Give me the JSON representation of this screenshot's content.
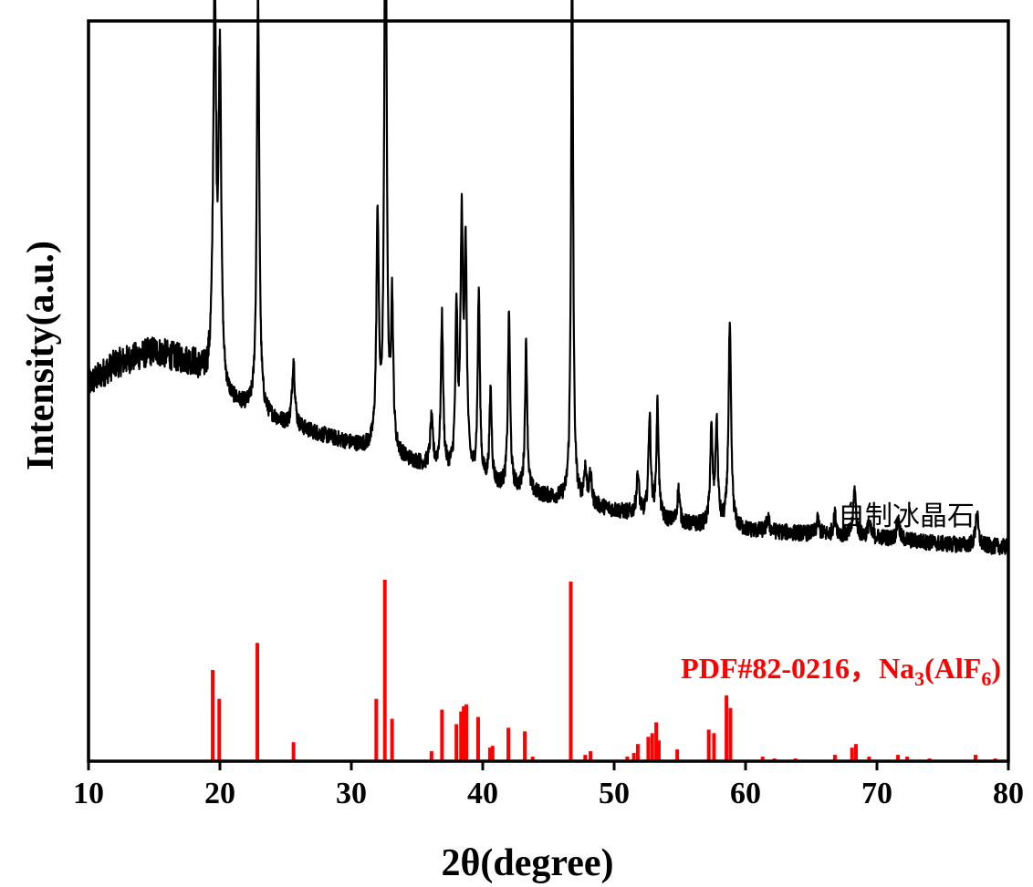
{
  "chart_data": {
    "type": "line",
    "title": "",
    "xlabel": "2θ(degree)",
    "ylabel": "Intensity(a.u.)",
    "xlim": [
      10,
      80
    ],
    "x_ticks": [
      "10",
      "20",
      "30",
      "40",
      "50",
      "60",
      "70",
      "80"
    ],
    "y_ticks": false,
    "grid": false,
    "legend_placement": "right",
    "colors": {
      "sample": "#000000",
      "reference": "#ff0000"
    },
    "series": [
      {
        "name": "自制冰晶石",
        "kind": "xrd-pattern",
        "baseline": [
          [
            10,
            0.42
          ],
          [
            12,
            0.45
          ],
          [
            15,
            0.47
          ],
          [
            18,
            0.45
          ],
          [
            20,
            0.4
          ],
          [
            25,
            0.36
          ],
          [
            30,
            0.33
          ],
          [
            35,
            0.3
          ],
          [
            40,
            0.27
          ],
          [
            45,
            0.25
          ],
          [
            50,
            0.23
          ],
          [
            55,
            0.21
          ],
          [
            60,
            0.2
          ],
          [
            65,
            0.195
          ],
          [
            70,
            0.19
          ],
          [
            75,
            0.18
          ],
          [
            80,
            0.175
          ]
        ],
        "peaks": [
          [
            19.6,
            0.6,
            0.13
          ],
          [
            20.0,
            0.49,
            0.12
          ],
          [
            22.9,
            0.64,
            0.11
          ],
          [
            25.6,
            0.1,
            0.12
          ],
          [
            32.0,
            0.34,
            0.11
          ],
          [
            32.6,
            0.98,
            0.1
          ],
          [
            33.1,
            0.22,
            0.1
          ],
          [
            36.1,
            0.07,
            0.12
          ],
          [
            36.9,
            0.23,
            0.1
          ],
          [
            38.0,
            0.23,
            0.1
          ],
          [
            38.4,
            0.36,
            0.11
          ],
          [
            38.7,
            0.32,
            0.11
          ],
          [
            39.7,
            0.28,
            0.1
          ],
          [
            40.6,
            0.14,
            0.1
          ],
          [
            42.0,
            0.26,
            0.1
          ],
          [
            43.3,
            0.22,
            0.1
          ],
          [
            46.8,
            0.85,
            0.09
          ],
          [
            47.8,
            0.05,
            0.12
          ],
          [
            48.2,
            0.04,
            0.12
          ],
          [
            51.8,
            0.06,
            0.12
          ],
          [
            52.7,
            0.15,
            0.11
          ],
          [
            53.3,
            0.17,
            0.1
          ],
          [
            54.9,
            0.05,
            0.11
          ],
          [
            57.4,
            0.14,
            0.11
          ],
          [
            57.8,
            0.15,
            0.11
          ],
          [
            58.8,
            0.3,
            0.12
          ],
          [
            61.7,
            0.02,
            0.12
          ],
          [
            65.5,
            0.02,
            0.12
          ],
          [
            66.8,
            0.03,
            0.12
          ],
          [
            68.3,
            0.07,
            0.12
          ],
          [
            69.4,
            0.02,
            0.12
          ],
          [
            71.6,
            0.03,
            0.12
          ],
          [
            77.6,
            0.05,
            0.12
          ]
        ]
      },
      {
        "name": "PDF#82-0216，Na₃(AlF₆)",
        "kind": "reference-sticks",
        "sticks": [
          [
            19.45,
            0.5
          ],
          [
            19.95,
            0.34
          ],
          [
            22.85,
            0.65
          ],
          [
            25.6,
            0.1
          ],
          [
            31.9,
            0.34
          ],
          [
            32.55,
            1.0
          ],
          [
            33.1,
            0.23
          ],
          [
            36.1,
            0.05
          ],
          [
            36.9,
            0.28
          ],
          [
            38.0,
            0.2
          ],
          [
            38.35,
            0.27
          ],
          [
            38.55,
            0.3
          ],
          [
            38.75,
            0.31
          ],
          [
            39.65,
            0.24
          ],
          [
            40.55,
            0.07
          ],
          [
            40.75,
            0.08
          ],
          [
            41.95,
            0.18
          ],
          [
            43.2,
            0.16
          ],
          [
            43.8,
            0.02
          ],
          [
            46.7,
            0.99
          ],
          [
            47.8,
            0.03
          ],
          [
            48.2,
            0.05
          ],
          [
            51.0,
            0.02
          ],
          [
            51.5,
            0.04
          ],
          [
            51.8,
            0.09
          ],
          [
            52.6,
            0.13
          ],
          [
            52.9,
            0.15
          ],
          [
            53.2,
            0.21
          ],
          [
            53.4,
            0.11
          ],
          [
            54.8,
            0.06
          ],
          [
            57.2,
            0.17
          ],
          [
            57.6,
            0.15
          ],
          [
            58.55,
            0.36
          ],
          [
            58.85,
            0.29
          ],
          [
            61.3,
            0.02
          ],
          [
            62.2,
            0.01
          ],
          [
            63.8,
            0.01
          ],
          [
            66.8,
            0.03
          ],
          [
            68.1,
            0.07
          ],
          [
            68.4,
            0.09
          ],
          [
            69.4,
            0.02
          ],
          [
            71.6,
            0.03
          ],
          [
            72.3,
            0.02
          ],
          [
            74.0,
            0.01
          ],
          [
            77.5,
            0.03
          ],
          [
            79.0,
            0.01
          ]
        ]
      }
    ]
  },
  "legend": {
    "sample_label": "自制冰晶石",
    "reference_pdf": "PDF#82-0216，Na",
    "reference_sub1": "3",
    "reference_mid": "(AlF",
    "reference_sub2": "6",
    "reference_end": ")"
  }
}
